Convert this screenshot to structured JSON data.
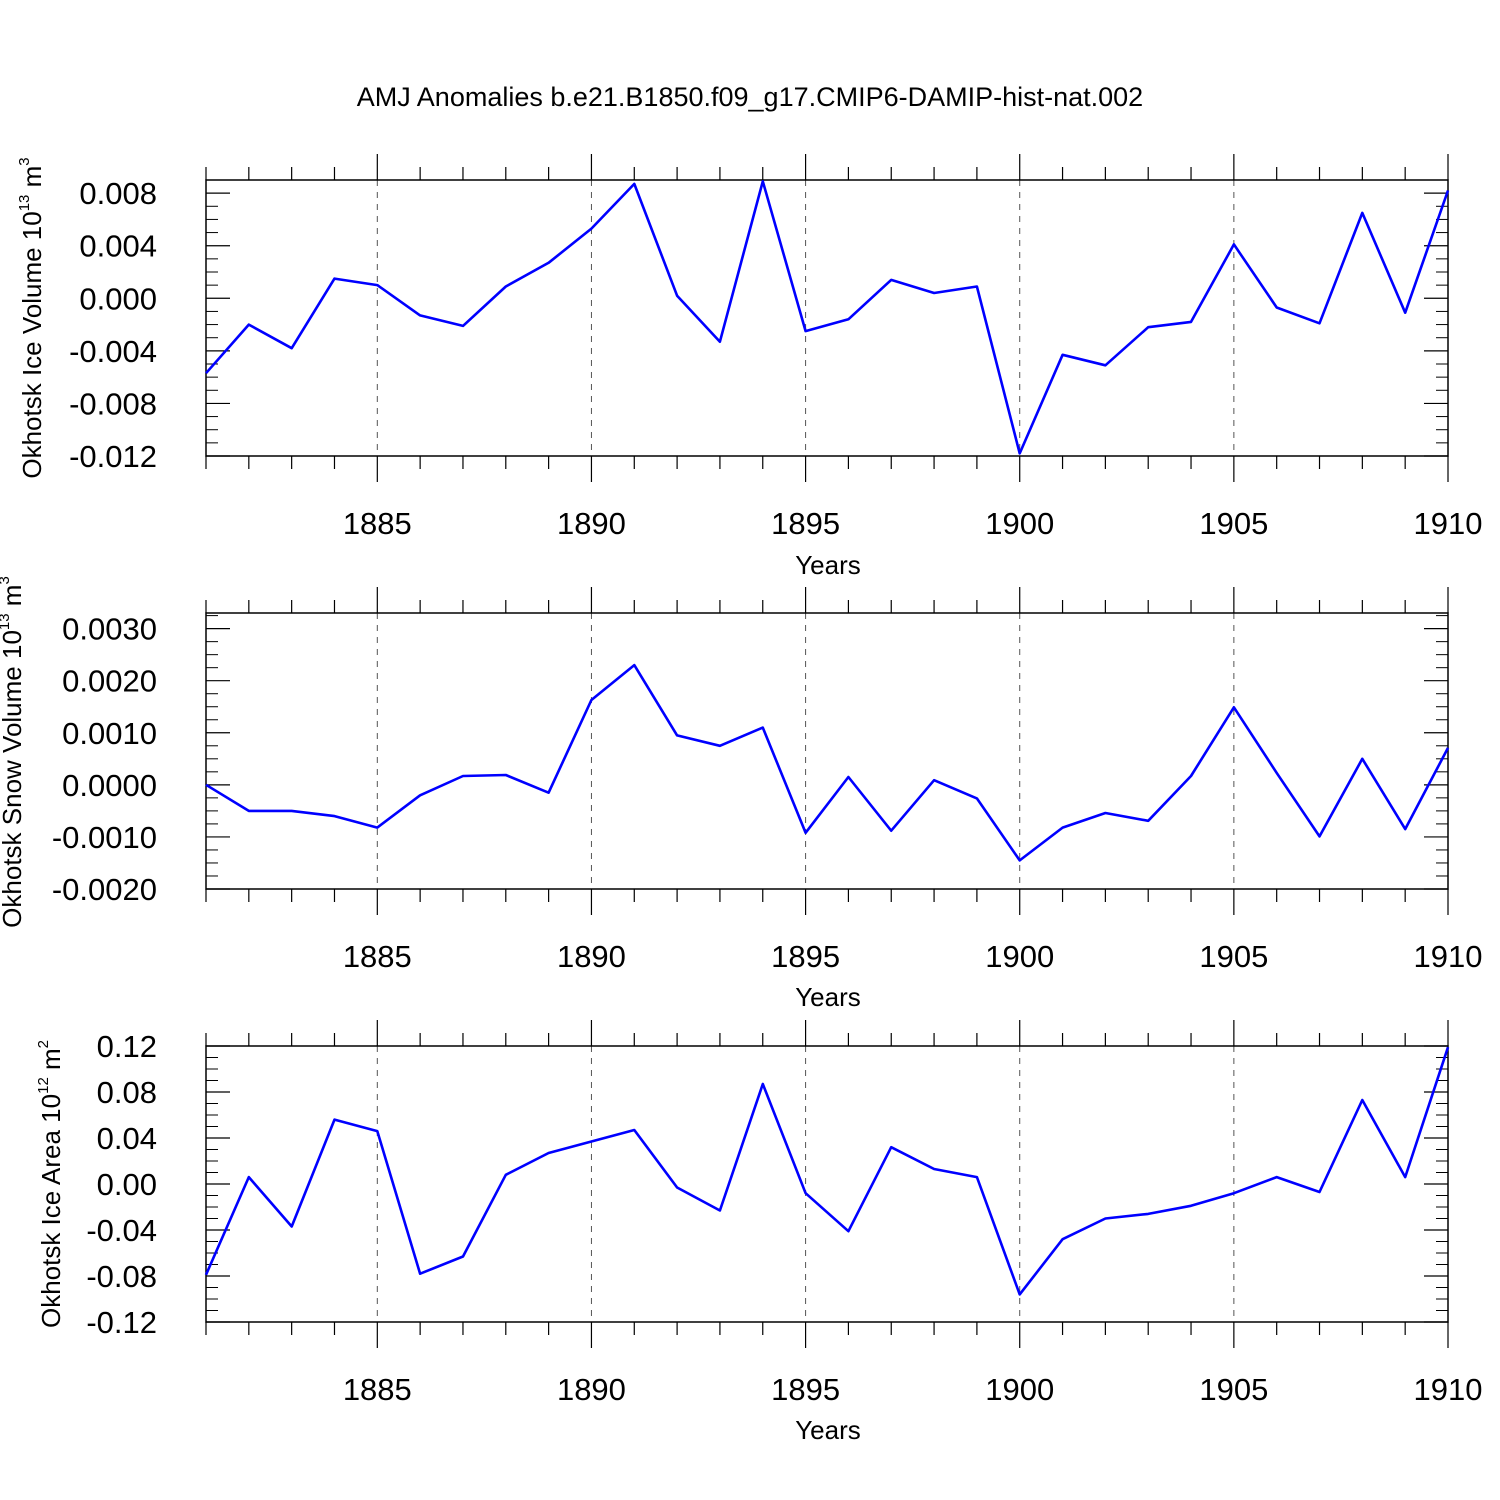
{
  "figure_title": "AMJ Anomalies b.e21.B1850.f09_g17.CMIP6-DAMIP-hist-nat.002",
  "colors": {
    "line": "#0000ff",
    "axis": "#000000",
    "grid": "#555555"
  },
  "chart_data": [
    {
      "type": "line",
      "title": "AMJ Anomalies b.e21.B1850.f09_g17.CMIP6-DAMIP-hist-nat.002",
      "xlabel": "Years",
      "ylabel": {
        "base": "Okhotsk Ice Volume 10",
        "exp1": "13",
        "unit": " m",
        "exp2": "3"
      },
      "xlim": [
        1881,
        1910
      ],
      "ylim": [
        -0.012,
        0.009
      ],
      "xticks": [
        1885,
        1890,
        1895,
        1900,
        1905,
        1910
      ],
      "yticks": [
        0.008,
        0.004,
        0.0,
        -0.004,
        -0.008,
        -0.012
      ],
      "ytick_labels": [
        "0.008",
        "0.004",
        "0.000",
        "-0.004",
        "-0.008",
        "-0.012"
      ],
      "grid": "x-dashed",
      "series": [
        {
          "name": "Okhotsk Ice Volume",
          "x": [
            1881,
            1882,
            1883,
            1884,
            1885,
            1886,
            1887,
            1888,
            1889,
            1890,
            1891,
            1892,
            1893,
            1894,
            1895,
            1896,
            1897,
            1898,
            1899,
            1900,
            1901,
            1902,
            1903,
            1904,
            1905,
            1906,
            1907,
            1908,
            1909,
            1910
          ],
          "values": [
            -0.0057,
            -0.002,
            -0.0038,
            0.0015,
            0.001,
            -0.0013,
            -0.0021,
            0.0009,
            0.0027,
            0.0053,
            0.0087,
            0.0002,
            -0.0033,
            0.0089,
            -0.0025,
            -0.0016,
            0.0014,
            0.0004,
            0.0009,
            -0.0118,
            -0.0043,
            -0.0051,
            -0.0022,
            -0.0018,
            0.0041,
            -0.0007,
            -0.0019,
            0.0065,
            -0.0011,
            0.0082
          ]
        }
      ]
    },
    {
      "type": "line",
      "title": "",
      "xlabel": "Years",
      "ylabel": {
        "base": "Okhotsk Snow Volume 10",
        "exp1": "13",
        "unit": " m",
        "exp2": "3"
      },
      "xlim": [
        1881,
        1910
      ],
      "ylim": [
        -0.002,
        0.0033
      ],
      "xticks": [
        1885,
        1890,
        1895,
        1900,
        1905,
        1910
      ],
      "yticks": [
        0.003,
        0.002,
        0.001,
        0.0,
        -0.001,
        -0.002
      ],
      "ytick_labels": [
        "0.0030",
        "0.0020",
        "0.0010",
        "0.0000",
        "-0.0010",
        "-0.0020"
      ],
      "grid": "x-dashed",
      "series": [
        {
          "name": "Okhotsk Snow Volume",
          "x": [
            1881,
            1882,
            1883,
            1884,
            1885,
            1886,
            1887,
            1888,
            1889,
            1890,
            1891,
            1892,
            1893,
            1894,
            1895,
            1896,
            1897,
            1898,
            1899,
            1900,
            1901,
            1902,
            1903,
            1904,
            1905,
            1906,
            1907,
            1908,
            1909,
            1910
          ],
          "values": [
            0.0,
            -0.0005,
            -0.0005,
            -0.0006,
            -0.00082,
            -0.0002,
            0.00017,
            0.00019,
            -0.00015,
            0.00163,
            0.0023,
            0.00095,
            0.00075,
            0.0011,
            -0.00092,
            0.00015,
            -0.00088,
            9e-05,
            -0.00026,
            -0.00145,
            -0.00082,
            -0.00054,
            -0.00069,
            0.00017,
            0.00149,
            0.00023,
            -0.00099,
            0.0005,
            -0.00085,
            0.00071
          ]
        }
      ]
    },
    {
      "type": "line",
      "title": "",
      "xlabel": "Years",
      "ylabel": {
        "base": "Okhotsk Ice Area 10",
        "exp1": "12",
        "unit": " m",
        "exp2": "2"
      },
      "xlim": [
        1881,
        1910
      ],
      "ylim": [
        -0.12,
        0.12
      ],
      "xticks": [
        1885,
        1890,
        1895,
        1900,
        1905,
        1910
      ],
      "yticks": [
        0.12,
        0.08,
        0.04,
        0.0,
        -0.04,
        -0.08,
        -0.12
      ],
      "ytick_labels": [
        "0.12",
        "0.08",
        "0.04",
        "0.00",
        "-0.04",
        "-0.08",
        "-0.12"
      ],
      "grid": "x-dashed",
      "series": [
        {
          "name": "Okhotsk Ice Area",
          "x": [
            1881,
            1882,
            1883,
            1884,
            1885,
            1886,
            1887,
            1888,
            1889,
            1890,
            1891,
            1892,
            1893,
            1894,
            1895,
            1896,
            1897,
            1898,
            1899,
            1900,
            1901,
            1902,
            1903,
            1904,
            1905,
            1906,
            1907,
            1908,
            1909,
            1910
          ],
          "values": [
            -0.079,
            0.006,
            -0.037,
            0.056,
            0.046,
            -0.078,
            -0.063,
            0.008,
            0.027,
            0.037,
            0.047,
            -0.003,
            -0.023,
            0.087,
            -0.008,
            -0.041,
            0.032,
            0.013,
            0.006,
            -0.096,
            -0.048,
            -0.03,
            -0.026,
            -0.019,
            -0.008,
            0.006,
            -0.007,
            0.073,
            0.006,
            0.119
          ]
        }
      ]
    }
  ]
}
